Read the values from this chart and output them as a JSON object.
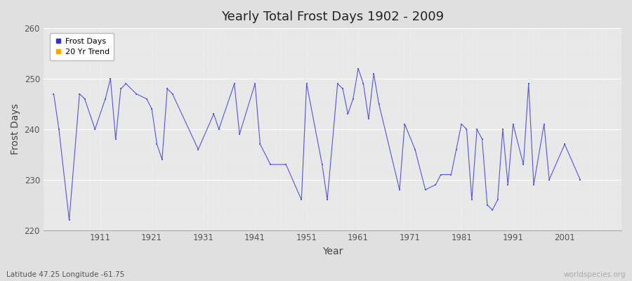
{
  "title": "Yearly Total Frost Days 1902 - 2009",
  "xlabel": "Year",
  "ylabel": "Frost Days",
  "subtitle": "Latitude 47.25 Longitude -61.75",
  "watermark": "worldspecies.org",
  "ylim": [
    220,
    260
  ],
  "yticks": [
    220,
    230,
    240,
    250,
    260
  ],
  "line_color": "#5555dd",
  "bg_color": "#e0e0e0",
  "plot_bg_color": "#e8e8e8",
  "legend_items": [
    "Frost Days",
    "20 Yr Trend"
  ],
  "legend_colors": [
    "#3333cc",
    "#ffa500"
  ],
  "xlim": [
    1900,
    2012
  ],
  "xtick_vals": [
    1911,
    1921,
    1931,
    1941,
    1951,
    1961,
    1971,
    1981,
    1991,
    2001
  ],
  "years": [
    1902,
    1903,
    1905,
    1907,
    1908,
    1910,
    1912,
    1913,
    1914,
    1915,
    1916,
    1918,
    1920,
    1921,
    1922,
    1923,
    1924,
    1925,
    1930,
    1933,
    1934,
    1937,
    1938,
    1941,
    1942,
    1944,
    1947,
    1950,
    1951,
    1954,
    1955,
    1957,
    1958,
    1959,
    1960,
    1961,
    1962,
    1963,
    1964,
    1965,
    1969,
    1970,
    1972,
    1974,
    1976,
    1977,
    1979,
    1980,
    1981,
    1982,
    1983,
    1984,
    1985,
    1986,
    1987,
    1988,
    1989,
    1990,
    1991,
    1993,
    1994,
    1995,
    1997,
    1998,
    2001,
    2004
  ],
  "frost_days": [
    247,
    240,
    222,
    247,
    246,
    240,
    246,
    250,
    238,
    248,
    249,
    247,
    246,
    244,
    237,
    234,
    248,
    247,
    236,
    243,
    240,
    249,
    239,
    249,
    237,
    233,
    233,
    226,
    249,
    233,
    226,
    249,
    248,
    243,
    246,
    252,
    249,
    242,
    251,
    245,
    228,
    241,
    236,
    228,
    229,
    231,
    231,
    236,
    241,
    240,
    226,
    240,
    238,
    225,
    224,
    226,
    240,
    229,
    241,
    233,
    249,
    229,
    241,
    230,
    237,
    230
  ]
}
